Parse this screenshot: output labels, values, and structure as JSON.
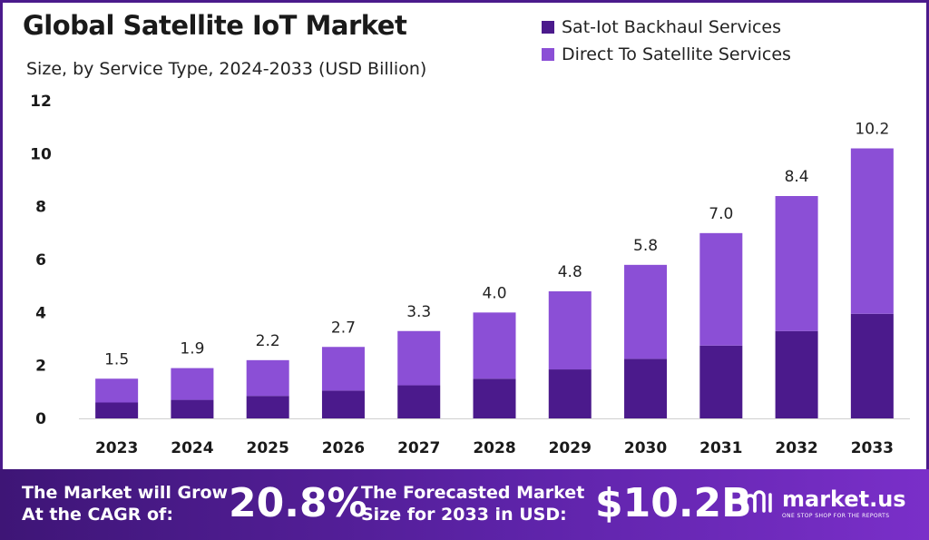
{
  "chart_data": {
    "type": "bar",
    "stacked": true,
    "title": "Global Satellite IoT Market",
    "subtitle": "Size, by Service Type, 2024-2033 (USD Billion)",
    "categories": [
      "2023",
      "2024",
      "2025",
      "2026",
      "2027",
      "2028",
      "2029",
      "2030",
      "2031",
      "2032",
      "2033"
    ],
    "series": [
      {
        "name": "Sat-Iot Backhaul Services",
        "color": "#4b1a8c",
        "values": [
          0.6,
          0.7,
          0.85,
          1.05,
          1.25,
          1.5,
          1.85,
          2.25,
          2.75,
          3.3,
          3.95
        ]
      },
      {
        "name": "Direct To Satellite Services",
        "color": "#8b4fd6",
        "values": [
          0.9,
          1.2,
          1.35,
          1.65,
          2.05,
          2.5,
          2.95,
          3.55,
          4.25,
          5.1,
          6.25
        ]
      }
    ],
    "totals": [
      "1.5",
      "1.9",
      "2.2",
      "2.7",
      "3.3",
      "4.0",
      "4.8",
      "5.8",
      "7.0",
      "8.4",
      "10.2"
    ],
    "ylim": [
      0,
      12
    ],
    "yticks": [
      "0",
      "2",
      "4",
      "6",
      "8",
      "10",
      "12"
    ],
    "grid": false,
    "legend": "top-right"
  },
  "footer": {
    "cagr_label": "The Market will Grow At the CAGR of:",
    "cagr_value": "20.8%",
    "size_label": "The Forecasted Market Size for 2033 in USD:",
    "size_value": "$10.2B",
    "brand_name": "market.us",
    "brand_tagline": "ONE STOP SHOP FOR THE REPORTS"
  },
  "colors": {
    "footer_start": "#3e1576",
    "footer_end": "#7a2fc9",
    "frame": "#4b1a8c"
  }
}
